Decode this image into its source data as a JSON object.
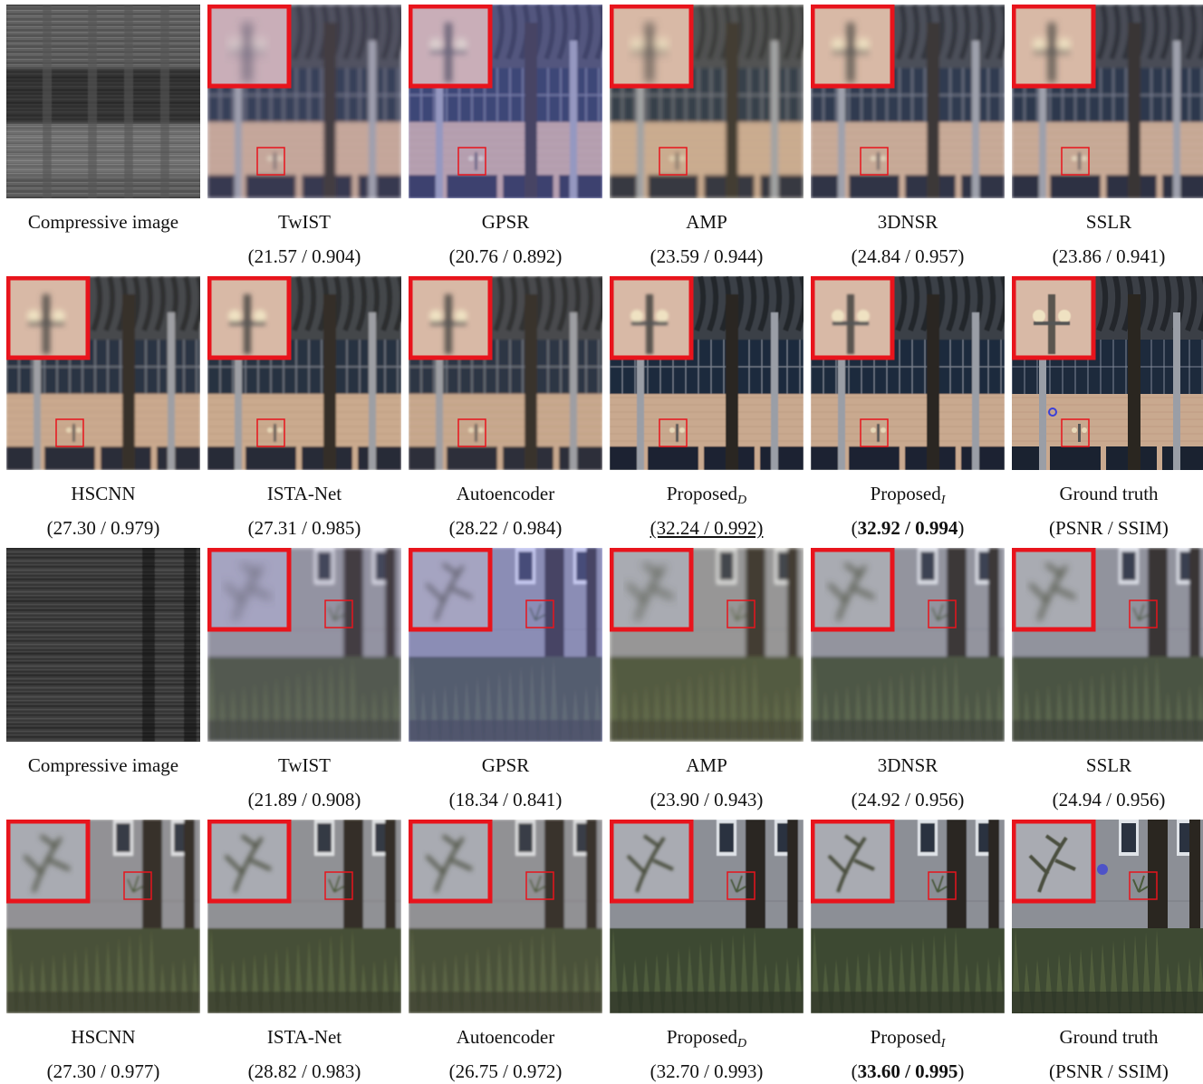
{
  "rows": [
    {
      "scene": "building",
      "methods": [
        {
          "key": "compressive",
          "label": "Compressive image",
          "score": "",
          "kind": "compressive"
        },
        {
          "key": "twist",
          "label": "TwIST",
          "score": "(21.57 / 0.904)",
          "kind": "recon"
        },
        {
          "key": "gpsr",
          "label": "GPSR",
          "score": "(20.76 / 0.892)",
          "kind": "recon"
        },
        {
          "key": "amp",
          "label": "AMP",
          "score": "(23.59 / 0.944)",
          "kind": "recon"
        },
        {
          "key": "3dnsr",
          "label": "3DNSR",
          "score": "(24.84 / 0.957)",
          "kind": "recon"
        },
        {
          "key": "sslr",
          "label": "SSLR",
          "score": "(23.86 / 0.941)",
          "kind": "recon"
        }
      ]
    },
    {
      "scene": "building",
      "methods": [
        {
          "key": "hscnn",
          "label": "HSCNN",
          "score": "(27.30 / 0.979)",
          "kind": "recon"
        },
        {
          "key": "ista-net",
          "label": "ISTA-Net",
          "score": "(27.31 / 0.985)",
          "kind": "recon"
        },
        {
          "key": "autoencoder",
          "label": "Autoencoder",
          "score": "(28.22 / 0.984)",
          "kind": "recon"
        },
        {
          "key": "proposed-d",
          "label": "Proposed",
          "sub": "D",
          "score": "(32.24 / 0.992)",
          "kind": "recon",
          "style": "second"
        },
        {
          "key": "proposed-i",
          "label": "Proposed",
          "sub": "I",
          "score_open": "(",
          "score": "32.92 / 0.994",
          "score_close": ")",
          "kind": "recon",
          "style": "best"
        },
        {
          "key": "ground-truth",
          "label": "Ground truth",
          "score": "(PSNR / SSIM)",
          "kind": "gt"
        }
      ]
    },
    {
      "scene": "garden",
      "methods": [
        {
          "key": "compressive",
          "label": "Compressive image",
          "score": "",
          "kind": "compressive"
        },
        {
          "key": "twist",
          "label": "TwIST",
          "score": "(21.89 / 0.908)",
          "kind": "recon"
        },
        {
          "key": "gpsr",
          "label": "GPSR",
          "score": "(18.34 / 0.841)",
          "kind": "recon"
        },
        {
          "key": "amp",
          "label": "AMP",
          "score": "(23.90 / 0.943)",
          "kind": "recon"
        },
        {
          "key": "3dnsr",
          "label": "3DNSR",
          "score": "(24.92 / 0.956)",
          "kind": "recon"
        },
        {
          "key": "sslr",
          "label": "SSLR",
          "score": "(24.94 / 0.956)",
          "kind": "recon"
        }
      ]
    },
    {
      "scene": "garden",
      "methods": [
        {
          "key": "hscnn",
          "label": "HSCNN",
          "score": "(27.30 / 0.977)",
          "kind": "recon"
        },
        {
          "key": "ista-net",
          "label": "ISTA-Net",
          "score": "(28.82 / 0.983)",
          "kind": "recon"
        },
        {
          "key": "autoencoder",
          "label": "Autoencoder",
          "score": "(26.75 / 0.972)",
          "kind": "recon"
        },
        {
          "key": "proposed-d",
          "label": "Proposed",
          "sub": "D",
          "score": "(32.70 / 0.993)",
          "kind": "recon"
        },
        {
          "key": "proposed-i",
          "label": "Proposed",
          "sub": "I",
          "score_open": "(",
          "score": "33.60 / 0.995",
          "score_close": ")",
          "kind": "recon",
          "style": "best"
        },
        {
          "key": "ground-truth",
          "label": "Ground truth",
          "score": "(PSNR / SSIM)",
          "kind": "gt"
        }
      ]
    }
  ],
  "colors": {
    "zoom_box": "#e8141c",
    "building_wall": "#c9a98f",
    "building_windows": "#1d2a3c",
    "garden_wall": "#8c8f96",
    "garden_foliage": "#3e4a33",
    "tree_trunk": "#2a2620",
    "marker": "#3a3fd8"
  }
}
